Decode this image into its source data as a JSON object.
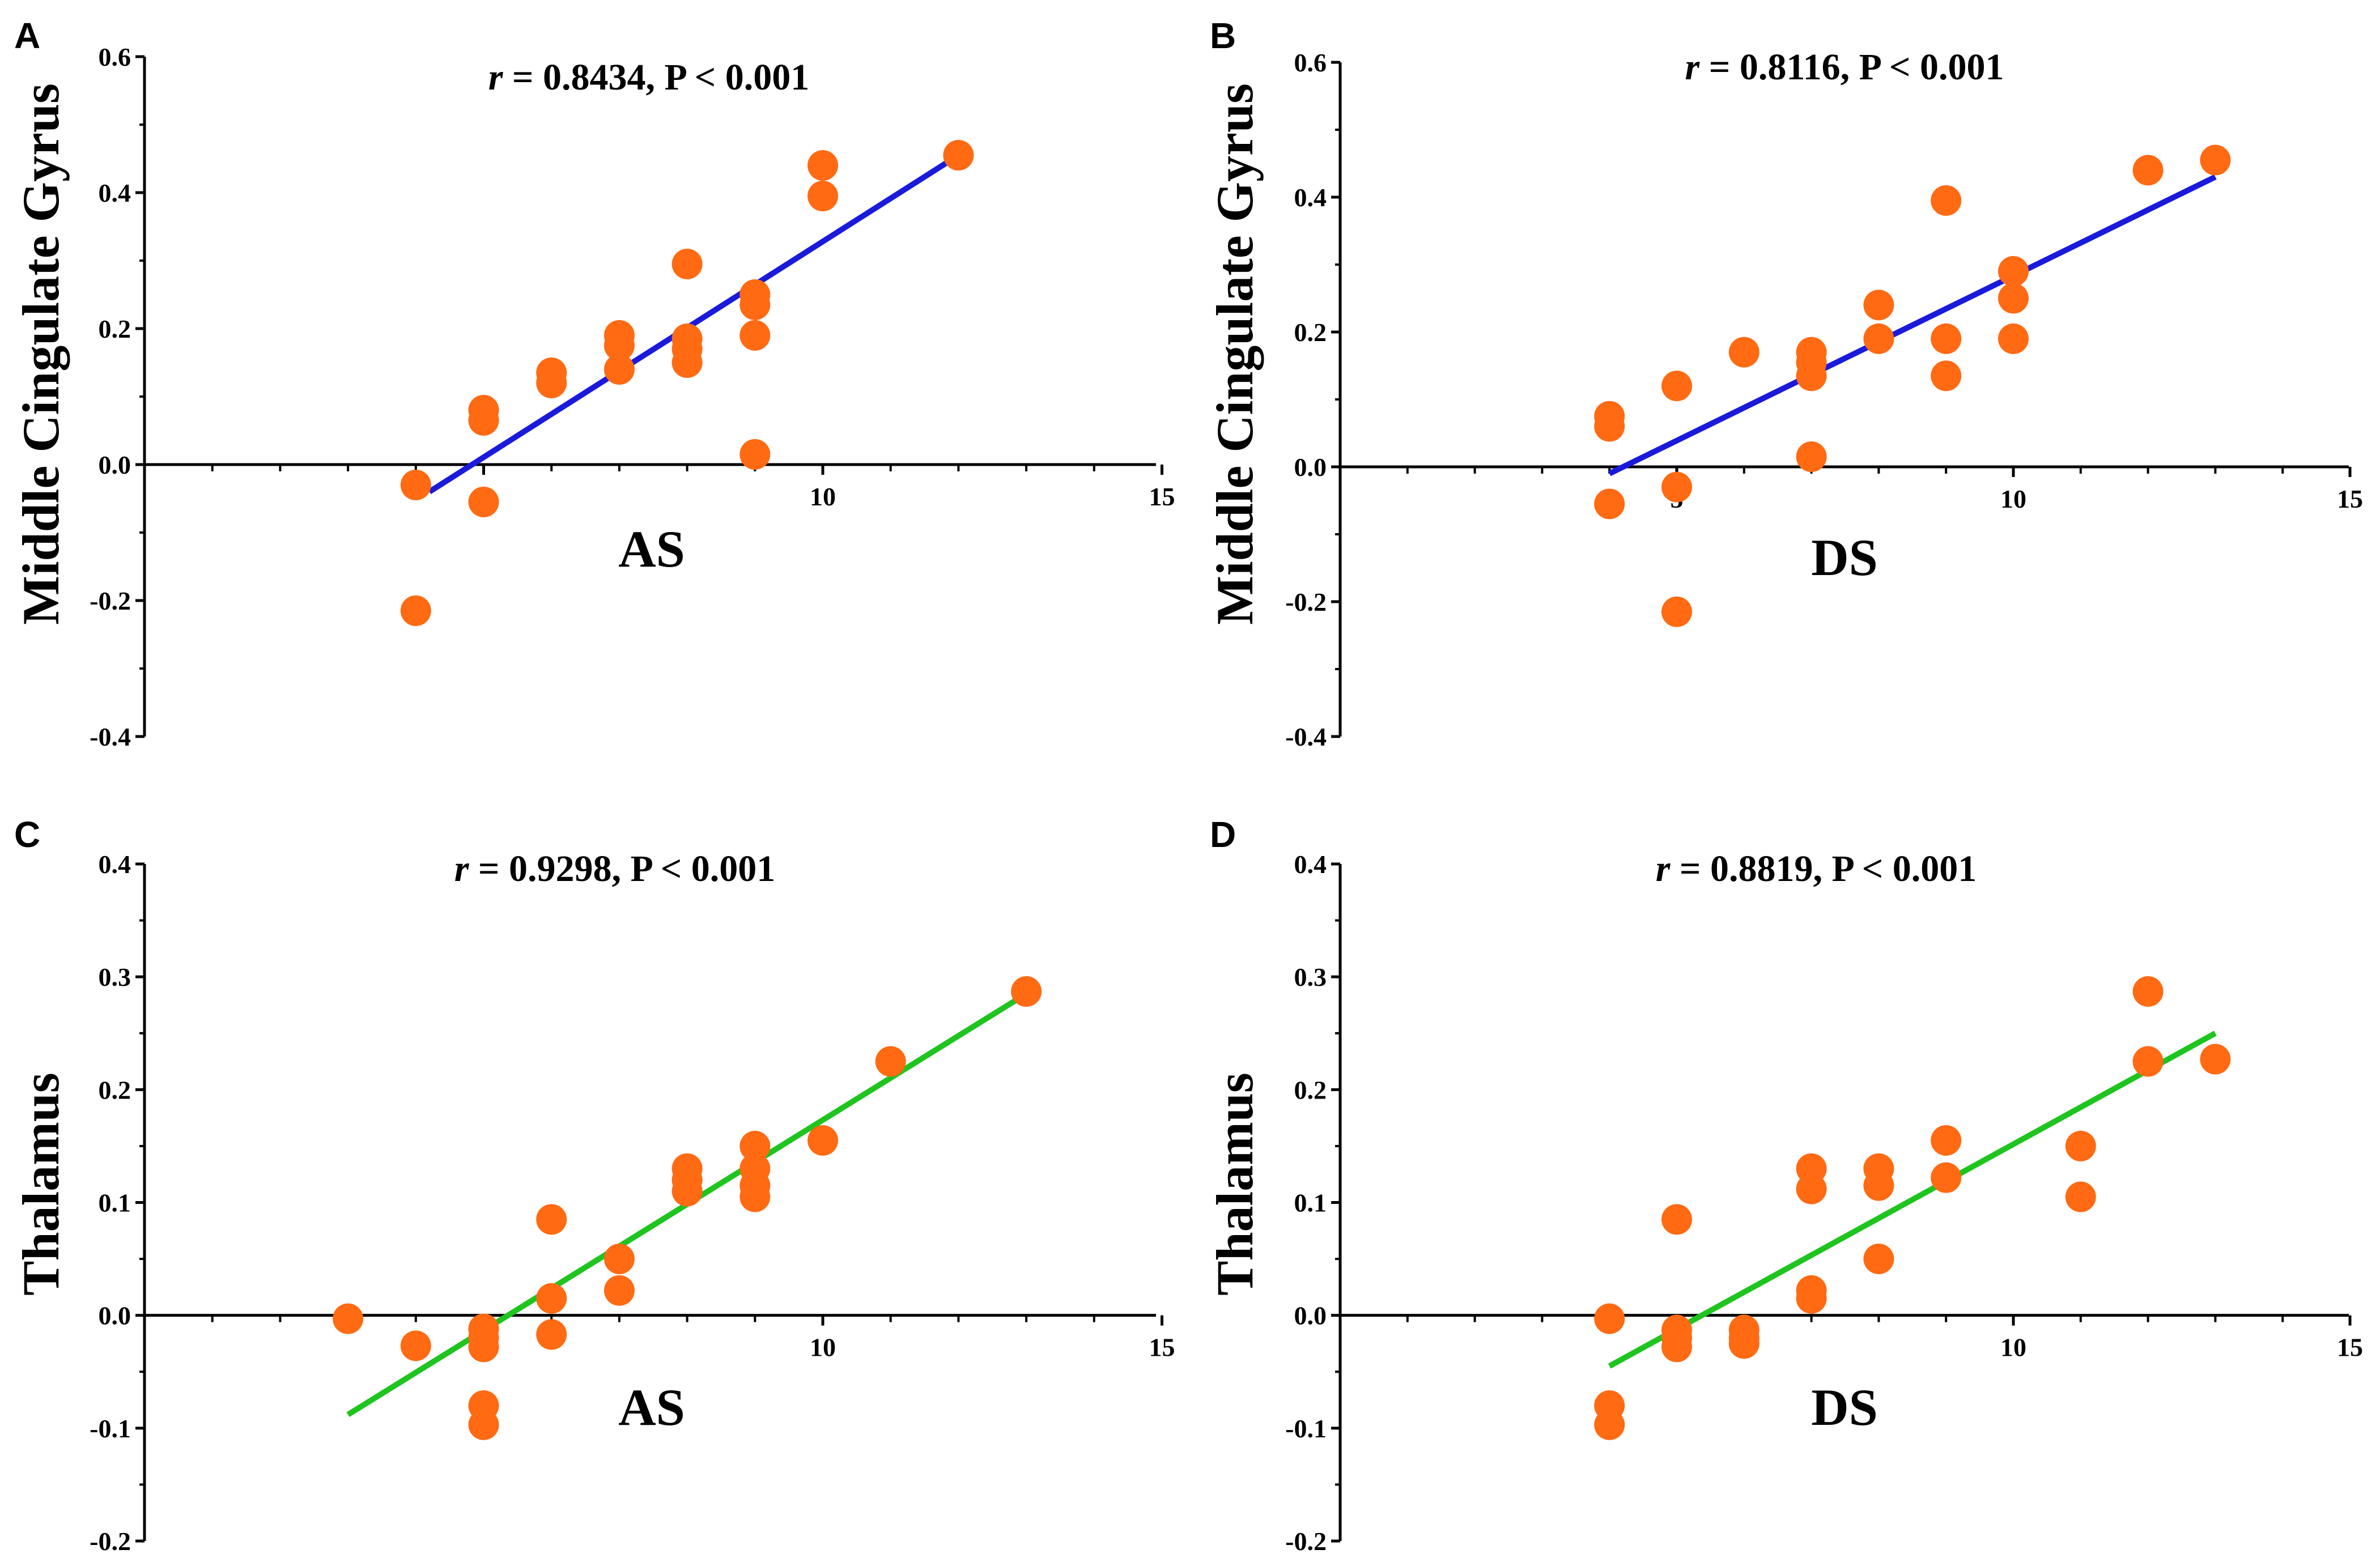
{
  "figure": {
    "panels": [
      {
        "letter": "A",
        "stat_r_symbol": "r",
        "stat_rest": " = 0.8434, P < 0.001"
      },
      {
        "letter": "B",
        "stat_r_symbol": "r",
        "stat_rest": " = 0.8116, P < 0.001"
      },
      {
        "letter": "C",
        "stat_r_symbol": "r",
        "stat_rest": " = 0.9298, P < 0.001"
      },
      {
        "letter": "D",
        "stat_r_symbol": "r",
        "stat_rest": " = 0.8819, P < 0.001"
      }
    ]
  },
  "chart_data": [
    {
      "type": "scatter",
      "panel": "A",
      "title": "r = 0.8434, P < 0.001",
      "xlabel": "AS",
      "ylabel": "Middle Cingulate Gyrus",
      "xlim": [
        0,
        15
      ],
      "ylim": [
        -0.4,
        0.6
      ],
      "xticks": [
        5,
        10,
        15
      ],
      "xtick_labels": [
        "",
        "10",
        "15"
      ],
      "yticks": [
        -0.4,
        -0.2,
        0.0,
        0.2,
        0.4,
        0.6
      ],
      "ytick_labels": [
        "-0.4",
        "-0.2",
        "0.0",
        "0.2",
        "0.4",
        "0.6"
      ],
      "point_color": "#ff6a13",
      "line_color": "#1a1adb",
      "points": [
        [
          4,
          -0.03
        ],
        [
          4,
          -0.215
        ],
        [
          5,
          0.08
        ],
        [
          5,
          0.065
        ],
        [
          5,
          -0.055
        ],
        [
          6,
          0.135
        ],
        [
          6,
          0.12
        ],
        [
          7,
          0.19
        ],
        [
          7,
          0.175
        ],
        [
          7,
          0.14
        ],
        [
          8,
          0.295
        ],
        [
          8,
          0.185
        ],
        [
          8,
          0.17
        ],
        [
          8,
          0.15
        ],
        [
          9,
          0.25
        ],
        [
          9,
          0.235
        ],
        [
          9,
          0.19
        ],
        [
          9,
          0.015
        ],
        [
          10,
          0.44
        ],
        [
          10,
          0.395
        ],
        [
          12,
          0.455
        ]
      ],
      "fit_line": [
        [
          4.2,
          -0.04
        ],
        [
          12,
          0.455
        ]
      ]
    },
    {
      "type": "scatter",
      "panel": "B",
      "title": "r = 0.8116, P < 0.001",
      "xlabel": "DS",
      "ylabel": "Middle Cingulate Gyrus",
      "xlim": [
        0,
        15
      ],
      "ylim": [
        -0.4,
        0.6
      ],
      "xticks": [
        5,
        10,
        15
      ],
      "xtick_labels": [
        "5",
        "10",
        "15"
      ],
      "yticks": [
        -0.4,
        -0.2,
        0.0,
        0.2,
        0.4,
        0.6
      ],
      "ytick_labels": [
        "-0.4",
        "-0.2",
        "0.0",
        "0.2",
        "0.4",
        "0.6"
      ],
      "point_color": "#ff6a13",
      "line_color": "#1a1adb",
      "points": [
        [
          4,
          0.075
        ],
        [
          4,
          0.06
        ],
        [
          4,
          -0.055
        ],
        [
          5,
          0.12
        ],
        [
          5,
          -0.03
        ],
        [
          5,
          -0.215
        ],
        [
          6,
          0.17
        ],
        [
          7,
          0.17
        ],
        [
          7,
          0.155
        ],
        [
          7,
          0.135
        ],
        [
          7,
          0.015
        ],
        [
          8,
          0.24
        ],
        [
          8,
          0.19
        ],
        [
          9,
          0.395
        ],
        [
          9,
          0.19
        ],
        [
          9,
          0.135
        ],
        [
          10,
          0.29
        ],
        [
          10,
          0.25
        ],
        [
          10,
          0.19
        ],
        [
          12,
          0.44
        ],
        [
          13,
          0.455
        ]
      ],
      "fit_line": [
        [
          4,
          -0.01
        ],
        [
          13,
          0.43
        ]
      ]
    },
    {
      "type": "scatter",
      "panel": "C",
      "title": "r = 0.9298, P < 0.001",
      "xlabel": "AS",
      "ylabel": "Thalamus",
      "xlim": [
        0,
        15
      ],
      "ylim": [
        -0.2,
        0.4
      ],
      "xticks": [
        5,
        10,
        15
      ],
      "xtick_labels": [
        "5",
        "10",
        "15"
      ],
      "yticks": [
        -0.2,
        -0.1,
        0.0,
        0.1,
        0.2,
        0.3,
        0.4
      ],
      "ytick_labels": [
        "-0.2",
        "-0.1",
        "0.0",
        "0.1",
        "0.2",
        "0.3",
        "0.4"
      ],
      "point_color": "#ff6a13",
      "line_color": "#1fc41f",
      "points": [
        [
          3,
          -0.003
        ],
        [
          4,
          -0.027
        ],
        [
          5,
          -0.012
        ],
        [
          5,
          -0.02
        ],
        [
          5,
          -0.028
        ],
        [
          5,
          -0.08
        ],
        [
          5,
          -0.097
        ],
        [
          6,
          0.085
        ],
        [
          6,
          0.015
        ],
        [
          6,
          -0.017
        ],
        [
          7,
          0.05
        ],
        [
          7,
          0.022
        ],
        [
          8,
          0.13
        ],
        [
          8,
          0.12
        ],
        [
          8,
          0.11
        ],
        [
          9,
          0.15
        ],
        [
          9,
          0.13
        ],
        [
          9,
          0.115
        ],
        [
          9,
          0.105
        ],
        [
          10,
          0.155
        ],
        [
          11,
          0.225
        ],
        [
          13,
          0.287
        ]
      ],
      "fit_line": [
        [
          3,
          -0.088
        ],
        [
          13,
          0.285
        ]
      ]
    },
    {
      "type": "scatter",
      "panel": "D",
      "title": "r = 0.8819, P < 0.001",
      "xlabel": "DS",
      "ylabel": "Thalamus",
      "xlim": [
        0,
        15
      ],
      "ylim": [
        -0.2,
        0.4
      ],
      "xticks": [
        5,
        10,
        15
      ],
      "xtick_labels": [
        "5",
        "10",
        "15"
      ],
      "yticks": [
        -0.2,
        -0.1,
        0.0,
        0.1,
        0.2,
        0.3,
        0.4
      ],
      "ytick_labels": [
        "-0.2",
        "-0.1",
        "0.0",
        "0.1",
        "0.2",
        "0.3",
        "0.4"
      ],
      "point_color": "#ff6a13",
      "line_color": "#1fc41f",
      "points": [
        [
          4,
          -0.003
        ],
        [
          4,
          -0.08
        ],
        [
          4,
          -0.097
        ],
        [
          5,
          0.085
        ],
        [
          5,
          -0.013
        ],
        [
          5,
          -0.02
        ],
        [
          5,
          -0.028
        ],
        [
          6,
          -0.013
        ],
        [
          6,
          -0.02
        ],
        [
          6,
          -0.025
        ],
        [
          7,
          0.13
        ],
        [
          7,
          0.112
        ],
        [
          7,
          0.022
        ],
        [
          7,
          0.015
        ],
        [
          8,
          0.13
        ],
        [
          8,
          0.115
        ],
        [
          8,
          0.05
        ],
        [
          9,
          0.155
        ],
        [
          9,
          0.122
        ],
        [
          11,
          0.15
        ],
        [
          11,
          0.105
        ],
        [
          12,
          0.287
        ],
        [
          12,
          0.225
        ],
        [
          13,
          0.227
        ]
      ],
      "fit_line": [
        [
          4,
          -0.045
        ],
        [
          13,
          0.25
        ]
      ]
    }
  ]
}
